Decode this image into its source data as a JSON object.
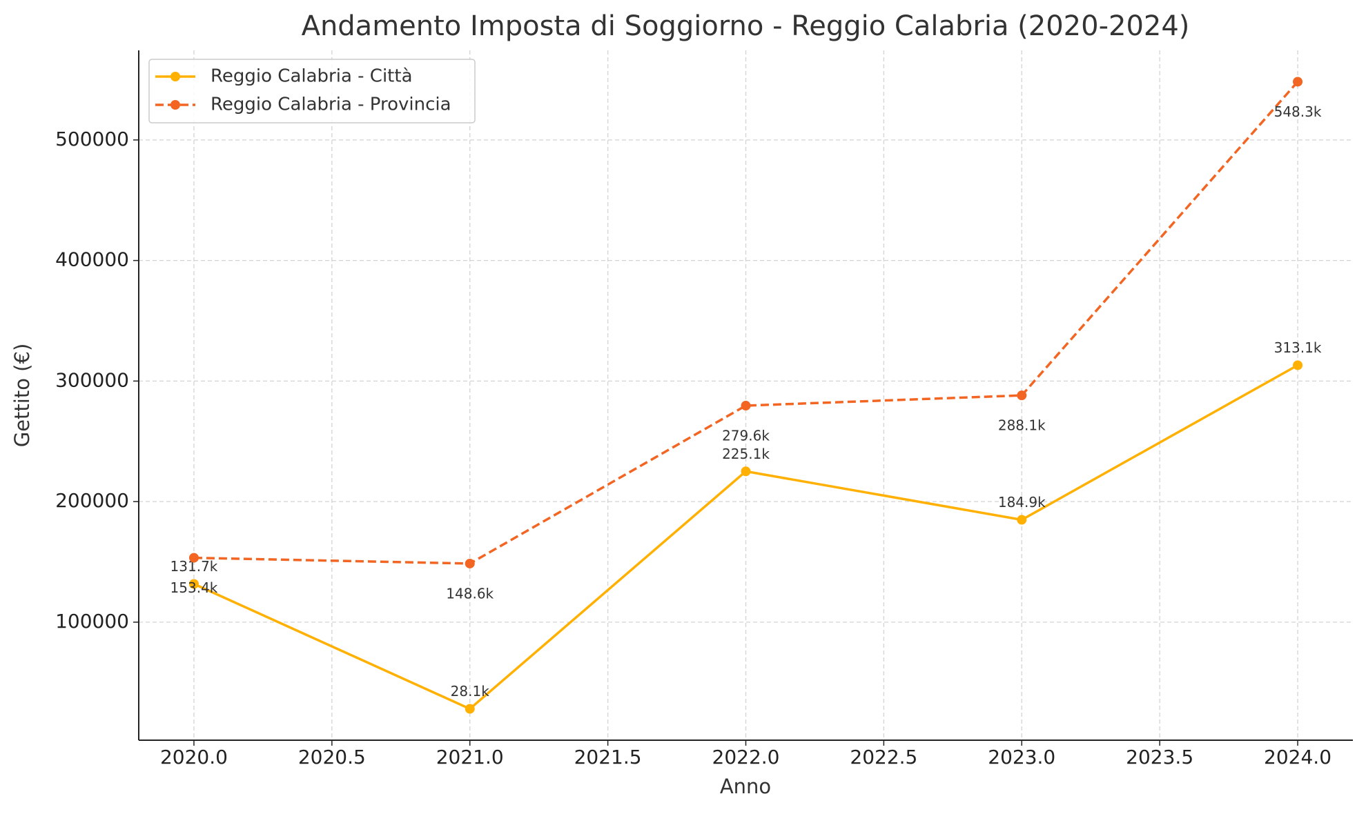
{
  "chart_data": {
    "type": "line",
    "title": "Andamento Imposta di Soggiorno - Reggio Calabria (2020-2024)",
    "x_label": "Anno",
    "y_label": "Gettito (€)",
    "x": [
      2020,
      2021,
      2022,
      2023,
      2024
    ],
    "series": [
      {
        "name": "Reggio Calabria - Città",
        "color": "#FFB000",
        "linestyle": "solid",
        "values": [
          131700,
          28100,
          225100,
          184900,
          313100
        ],
        "value_labels": [
          "131.7k",
          "28.1k",
          "225.1k",
          "184.9k",
          "313.1k"
        ]
      },
      {
        "name": "Reggio Calabria - Provincia",
        "color": "#F26522",
        "linestyle": "dashed",
        "values": [
          153400,
          148600,
          279600,
          288100,
          548300
        ],
        "value_labels": [
          "153.4k",
          "148.6k",
          "279.6k",
          "288.1k",
          "548.3k"
        ]
      }
    ],
    "xlim": [
      2019.8,
      2024.2
    ],
    "xticks": [
      {
        "value": 2020,
        "label": "2020.0"
      },
      {
        "value": 2020.5,
        "label": "2020.5"
      },
      {
        "value": 2021,
        "label": "2021.0"
      },
      {
        "value": 2021.5,
        "label": "2021.5"
      },
      {
        "value": 2022,
        "label": "2022.0"
      },
      {
        "value": 2022.5,
        "label": "2022.5"
      },
      {
        "value": 2023,
        "label": "2023.0"
      },
      {
        "value": 2023.5,
        "label": "2023.5"
      },
      {
        "value": 2024,
        "label": "2024.0"
      }
    ],
    "ylim": [
      2090,
      574310
    ],
    "yticks": [
      100000,
      200000,
      300000,
      400000,
      500000
    ],
    "grid": true,
    "legend": "upper left"
  }
}
